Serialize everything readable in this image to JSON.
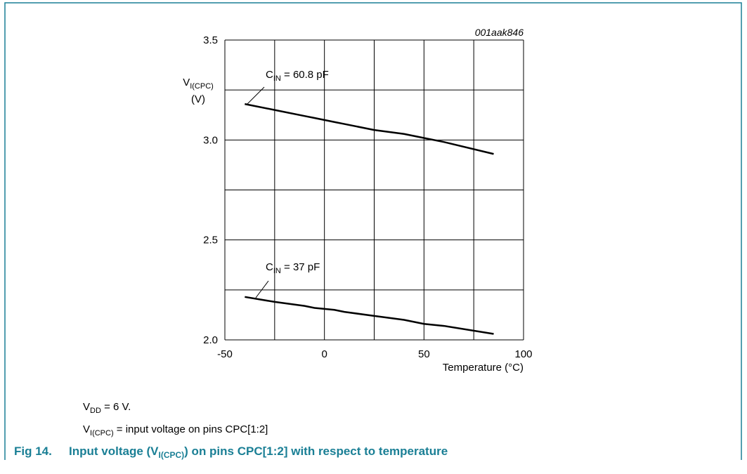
{
  "chart_data": {
    "type": "line",
    "figure_id": "001aak846",
    "ylabel": {
      "main": "V",
      "sub": "I(CPC)",
      "unit": "(V)"
    },
    "xlabel": "Temperature (°C)",
    "x": [
      -40,
      -25,
      -10,
      -5,
      5,
      10,
      25,
      40,
      50,
      60,
      85
    ],
    "series": [
      {
        "label": {
          "main": "C",
          "sub": "IN",
          "rest": " = 60.8 pF"
        },
        "color": "#000000",
        "values": [
          3.18,
          3.15,
          3.12,
          3.11,
          3.09,
          3.08,
          3.05,
          3.03,
          3.01,
          2.99,
          2.93
        ]
      },
      {
        "label": {
          "main": "C",
          "sub": "IN",
          "rest": " = 37 pF"
        },
        "color": "#000000",
        "values": [
          2.215,
          2.19,
          2.17,
          2.16,
          2.15,
          2.14,
          2.12,
          2.1,
          2.08,
          2.07,
          2.03
        ]
      }
    ],
    "xlim": [
      -50,
      100
    ],
    "xticks": [
      -50,
      0,
      50,
      100
    ],
    "xminor": [
      -25,
      25,
      75
    ],
    "ylim": [
      2,
      3.5
    ],
    "yticks": [
      {
        "value": 2,
        "label": "2.0"
      },
      {
        "value": 2.5,
        "label": "2.5"
      },
      {
        "value": 3,
        "label": "3.0"
      },
      {
        "value": 3.5,
        "label": "3.5"
      }
    ],
    "yminor": [
      2.25,
      2.75,
      3.25
    ],
    "grid": true
  },
  "notes": [
    {
      "main": "V",
      "sub": "DD",
      "rest": " = 6 V."
    },
    {
      "main": "V",
      "sub": "I(CPC)",
      "rest": " = input voltage on pins CPC[1:2]"
    }
  ],
  "caption": {
    "number": "Fig 14.",
    "main": "Input voltage (V",
    "sub": "I(CPC)",
    "rest": ") on pins CPC[1:2] with respect to temperature"
  }
}
